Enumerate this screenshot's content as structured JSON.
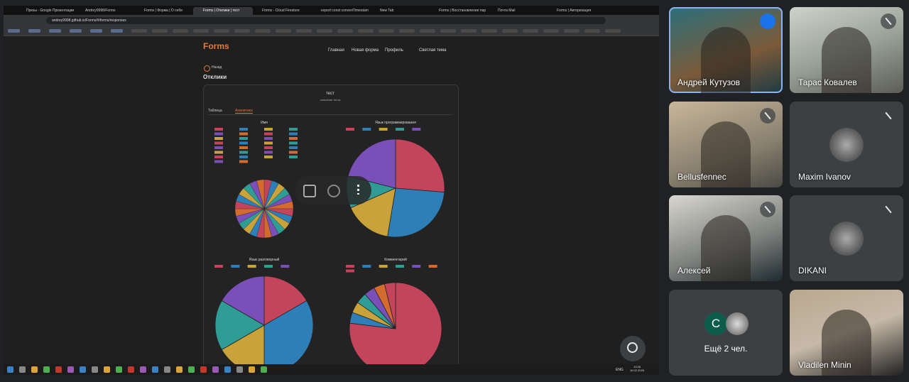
{
  "browser": {
    "tabs": [
      "Презы - Google Презентации",
      "Andrey9998/Forms",
      "Forms | Форма | О себе",
      "Forms | Отклики | тест",
      "Forms - Cloud Firestore",
      "export const convertTimestam",
      "New Tab",
      "Forms | Восстановление пар",
      "Почта Mail",
      "Forms | Авторизация"
    ],
    "active_tab": 3,
    "url": "andrey9998.github.io/Forms/#/forms/responses"
  },
  "app": {
    "logo": "Forms",
    "nav": [
      "Главная",
      "Новая форма",
      "Профиль",
      "Светлая тема"
    ],
    "back": "Назад",
    "heading": "Отклики",
    "form_title": "тест",
    "form_description": "описание теста",
    "view_tabs": [
      "Таблица",
      "Аналитика"
    ]
  },
  "colors": [
    "#c4455b",
    "#2e7fb8",
    "#c9a23a",
    "#2f9c95",
    "#7a4fb8",
    "#d36b2e"
  ],
  "pies": [
    {
      "title": "Имя",
      "slices": [
        1,
        1,
        1,
        1,
        1,
        1,
        1,
        1,
        1,
        1,
        1,
        1,
        1,
        1,
        1,
        1,
        1,
        1,
        1,
        1,
        1,
        1,
        1,
        1
      ]
    },
    {
      "title": "Язык программирования",
      "slices": [
        5,
        5,
        3,
        2,
        4
      ]
    },
    {
      "title": "Язык разговорный",
      "slices": [
        2,
        4,
        2,
        2,
        2
      ]
    },
    {
      "title": "Комментарий",
      "slices": [
        20,
        1,
        1,
        1,
        1,
        1,
        1
      ]
    }
  ],
  "taskbar": {
    "lang": "ENG",
    "time": "13:28",
    "date": "16.02.2025"
  },
  "participants": [
    {
      "name": "Андрей Кутузов",
      "kind": "video",
      "muted": false
    },
    {
      "name": "Тарас Ковалев",
      "kind": "video",
      "muted": true
    },
    {
      "name": "Bellusfennec",
      "kind": "video",
      "muted": true
    },
    {
      "name": "Maxim Ivanov",
      "kind": "avatar",
      "muted": true
    },
    {
      "name": "Алексей",
      "kind": "video",
      "muted": true
    },
    {
      "name": "DIKANI",
      "kind": "avatar",
      "muted": true
    },
    {
      "name": "Ещё 2 чел.",
      "kind": "more",
      "muted": false,
      "initial": "С"
    },
    {
      "name": "Vladilen Minin",
      "kind": "video",
      "muted": false
    }
  ]
}
